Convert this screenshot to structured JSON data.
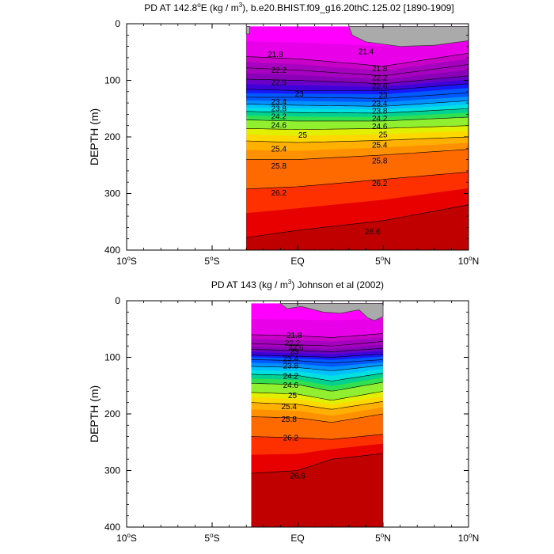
{
  "chart_data": [
    {
      "type": "contour",
      "title": "PD AT 142.8°E (kg / m³), b.e20.BHIST.f09_g16.20thC.125.02 [1890-1909]",
      "title_parts": {
        "pre": "PD AT 142.8",
        "deg": "o",
        "mid": "E (kg / m",
        "sup": "3",
        "post": "), b.e20.BHIST.f09_g16.20thC.125.02 [1890-1909]"
      },
      "ylabel": "DEPTH (m)",
      "xlim": [
        -10,
        10
      ],
      "ylim": [
        400,
        0
      ],
      "x_ticks": [
        {
          "value": -10,
          "num": "10",
          "deg": "o",
          "hem": "S"
        },
        {
          "value": -5,
          "num": "5",
          "deg": "o",
          "hem": "S"
        },
        {
          "value": 0,
          "num": "EQ",
          "deg": "",
          "hem": ""
        },
        {
          "value": 5,
          "num": "5",
          "deg": "o",
          "hem": "N"
        },
        {
          "value": 10,
          "num": "10",
          "deg": "o",
          "hem": "N"
        }
      ],
      "y_ticks": [
        0,
        100,
        200,
        300,
        400
      ],
      "data_xrange": [
        -3,
        10
      ],
      "data_depth_range": [
        5,
        400
      ],
      "contour_levels": [
        21.8,
        22.2,
        22.6,
        23,
        23.4,
        23.8,
        24.2,
        24.6,
        25,
        25.4,
        25.8,
        26.2,
        26.6
      ],
      "isopycnal_depth_m": {
        "21.8": {
          "x": [
            -3,
            0,
            5,
            10
          ],
          "depth": [
            58,
            62,
            75,
            52
          ]
        },
        "22.2": {
          "x": [
            -3,
            0,
            5,
            10
          ],
          "depth": [
            78,
            82,
            92,
            72
          ]
        },
        "22.6": {
          "x": [
            -3,
            0,
            5,
            10
          ],
          "depth": [
            98,
            100,
            106,
            92
          ]
        },
        "23": {
          "x": [
            -3,
            0,
            5,
            10
          ],
          "depth": [
            116,
            118,
            118,
            106
          ]
        },
        "23.4": {
          "x": [
            -3,
            0,
            5,
            10
          ],
          "depth": [
            130,
            130,
            132,
            122
          ]
        },
        "23.8": {
          "x": [
            -3,
            0,
            5,
            10
          ],
          "depth": [
            142,
            144,
            146,
            136
          ]
        },
        "24.2": {
          "x": [
            -3,
            0,
            5,
            10
          ],
          "depth": [
            155,
            157,
            158,
            150
          ]
        },
        "24.6": {
          "x": [
            -3,
            0,
            5,
            10
          ],
          "depth": [
            170,
            172,
            172,
            165
          ]
        },
        "25": {
          "x": [
            -3,
            0,
            5,
            10
          ],
          "depth": [
            185,
            187,
            185,
            180
          ]
        },
        "25.4": {
          "x": [
            -3,
            0,
            5,
            10
          ],
          "depth": [
            207,
            210,
            206,
            200
          ]
        },
        "25.8": {
          "x": [
            -3,
            0,
            5,
            10
          ],
          "depth": [
            240,
            240,
            232,
            222
          ]
        },
        "26.2": {
          "x": [
            -3,
            0,
            5,
            10
          ],
          "depth": [
            292,
            288,
            275,
            262
          ]
        },
        "26.6": {
          "x": [
            -3,
            0,
            5,
            10
          ],
          "depth": [
            378,
            365,
            348,
            320
          ]
        }
      },
      "contour_labels": [
        {
          "text": "21.8",
          "x": -1.3,
          "depth": 55
        },
        {
          "text": "21.4",
          "x": 4.0,
          "depth": 50
        },
        {
          "text": "21.8",
          "x": 4.8,
          "depth": 80
        },
        {
          "text": "22.2",
          "x": -1.1,
          "depth": 83
        },
        {
          "text": "22.2",
          "x": 4.8,
          "depth": 96
        },
        {
          "text": "22.6",
          "x": -1.1,
          "depth": 105
        },
        {
          "text": "22.6",
          "x": 4.8,
          "depth": 112
        },
        {
          "text": "23",
          "x": 0.1,
          "depth": 125
        },
        {
          "text": "23",
          "x": 5.0,
          "depth": 127
        },
        {
          "text": "23.4",
          "x": -1.1,
          "depth": 139
        },
        {
          "text": "23.4",
          "x": 4.8,
          "depth": 142
        },
        {
          "text": "23.8",
          "x": -1.1,
          "depth": 151
        },
        {
          "text": "23.8",
          "x": 4.8,
          "depth": 155
        },
        {
          "text": "24.2",
          "x": -1.1,
          "depth": 165
        },
        {
          "text": "24.2",
          "x": 4.8,
          "depth": 168
        },
        {
          "text": "24.6",
          "x": -1.1,
          "depth": 180
        },
        {
          "text": "24.6",
          "x": 4.8,
          "depth": 182
        },
        {
          "text": "25",
          "x": 0.3,
          "depth": 198
        },
        {
          "text": "25",
          "x": 5.0,
          "depth": 197
        },
        {
          "text": "25.4",
          "x": -1.1,
          "depth": 222
        },
        {
          "text": "25.4",
          "x": 4.8,
          "depth": 215
        },
        {
          "text": "25.8",
          "x": -1.1,
          "depth": 252
        },
        {
          "text": "25.8",
          "x": 4.8,
          "depth": 243
        },
        {
          "text": "26.2",
          "x": -1.1,
          "depth": 300
        },
        {
          "text": "26.2",
          "x": 4.8,
          "depth": 283
        },
        {
          "text": "26.6",
          "x": 4.4,
          "depth": 368
        }
      ],
      "land_mask": [
        {
          "x": [
            -3,
            -2.8,
            -2.8,
            -3
          ],
          "depth": [
            5,
            5,
            18,
            18
          ]
        },
        {
          "x": [
            3,
            3.2,
            4,
            6,
            8,
            10,
            10
          ],
          "depth": [
            5,
            20,
            32,
            40,
            38,
            30,
            5
          ]
        }
      ]
    },
    {
      "type": "contour",
      "title": "PD AT 143 (kg / m³) Johnson et al (2002)",
      "title_parts": {
        "pre": "PD AT 143 (kg / m",
        "sup": "3",
        "post": ") Johnson et al (2002)"
      },
      "ylabel": "DEPTH (m)",
      "xlim": [
        -10,
        10
      ],
      "ylim": [
        400,
        0
      ],
      "x_ticks": [
        {
          "value": -10,
          "num": "10",
          "deg": "o",
          "hem": "S"
        },
        {
          "value": -5,
          "num": "5",
          "deg": "o",
          "hem": "S"
        },
        {
          "value": 0,
          "num": "EQ",
          "deg": "",
          "hem": ""
        },
        {
          "value": 5,
          "num": "5",
          "deg": "o",
          "hem": "N"
        },
        {
          "value": 10,
          "num": "10",
          "deg": "o",
          "hem": "N"
        }
      ],
      "y_ticks": [
        0,
        100,
        200,
        300,
        400
      ],
      "data_xrange": [
        -2.7,
        5
      ],
      "data_depth_range": [
        5,
        400
      ],
      "contour_levels": [
        21.8,
        22.2,
        22.6,
        23,
        23.4,
        23.8,
        24.2,
        24.6,
        25,
        25.4,
        25.8,
        26.2,
        26.6
      ],
      "isopycnal_depth_m": {
        "21.8": {
          "x": [
            -2.7,
            0,
            2,
            5
          ],
          "depth": [
            60,
            62,
            65,
            58
          ]
        },
        "22.2": {
          "x": [
            -2.7,
            0,
            2,
            5
          ],
          "depth": [
            76,
            78,
            80,
            72
          ]
        },
        "22.6": {
          "x": [
            -2.7,
            0,
            2,
            5
          ],
          "depth": [
            86,
            88,
            90,
            84
          ]
        },
        "23": {
          "x": [
            -2.7,
            0,
            2,
            5
          ],
          "depth": [
            96,
            98,
            100,
            94
          ]
        },
        "23.4": {
          "x": [
            -2.7,
            0,
            2,
            5
          ],
          "depth": [
            104,
            106,
            110,
            104
          ]
        },
        "23.8": {
          "x": [
            -2.7,
            0,
            2,
            5
          ],
          "depth": [
            116,
            118,
            124,
            114
          ]
        },
        "24.2": {
          "x": [
            -2.7,
            0,
            2,
            5
          ],
          "depth": [
            130,
            132,
            142,
            128
          ]
        },
        "24.6": {
          "x": [
            -2.7,
            0,
            2,
            5
          ],
          "depth": [
            146,
            148,
            160,
            144
          ]
        },
        "25": {
          "x": [
            -2.7,
            0,
            2,
            5
          ],
          "depth": [
            162,
            165,
            176,
            160
          ]
        },
        "25.4": {
          "x": [
            -2.7,
            0,
            2,
            5
          ],
          "depth": [
            180,
            183,
            192,
            178
          ]
        },
        "25.8": {
          "x": [
            -2.7,
            0,
            2,
            5
          ],
          "depth": [
            205,
            207,
            215,
            200
          ]
        },
        "26.2": {
          "x": [
            -2.7,
            0,
            2,
            5
          ],
          "depth": [
            240,
            242,
            245,
            236
          ]
        },
        "26.6": {
          "x": [
            -2.7,
            0,
            2,
            5
          ],
          "depth": [
            305,
            300,
            280,
            270
          ]
        }
      },
      "contour_labels": [
        {
          "text": "21.8",
          "x": -0.2,
          "depth": 62
        },
        {
          "text": "22.2",
          "x": -0.3,
          "depth": 76
        },
        {
          "text": "22.6",
          "x": -0.1,
          "depth": 84
        },
        {
          "text": "23",
          "x": -0.2,
          "depth": 91
        },
        {
          "text": "23.4",
          "x": -0.4,
          "depth": 103
        },
        {
          "text": "23.8",
          "x": -0.4,
          "depth": 116
        },
        {
          "text": "24.2",
          "x": -0.4,
          "depth": 134
        },
        {
          "text": "24.6",
          "x": -0.4,
          "depth": 150
        },
        {
          "text": "25",
          "x": -0.3,
          "depth": 168
        },
        {
          "text": "25.4",
          "x": -0.5,
          "depth": 188
        },
        {
          "text": "25.8",
          "x": -0.5,
          "depth": 210
        },
        {
          "text": "26.2",
          "x": -0.4,
          "depth": 243
        },
        {
          "text": "26.6",
          "x": 0.0,
          "depth": 310
        }
      ],
      "land_mask": [
        {
          "x": [
            -1.0,
            -0.6,
            0.2,
            1.5,
            2.5,
            3.6,
            4.1,
            4.5,
            5,
            5,
            -1.0
          ],
          "depth": [
            5,
            14,
            10,
            20,
            22,
            16,
            30,
            35,
            28,
            5,
            5
          ]
        }
      ]
    }
  ],
  "colors": {
    "bands": [
      "#ff00ff",
      "#e800e8",
      "#c800c8",
      "#a800c0",
      "#8a00b8",
      "#6a00c8",
      "#4000d8",
      "#1818f8",
      "#0058ff",
      "#0090ff",
      "#00c0ff",
      "#00e0e0",
      "#00d090",
      "#30e050",
      "#90f030",
      "#e0f000",
      "#ffd800",
      "#ffb000",
      "#ff9000",
      "#ff6a00",
      "#ff3000",
      "#e80000",
      "#c00000"
    ],
    "land": "#aaaaaa",
    "land_dark": "#888888"
  }
}
